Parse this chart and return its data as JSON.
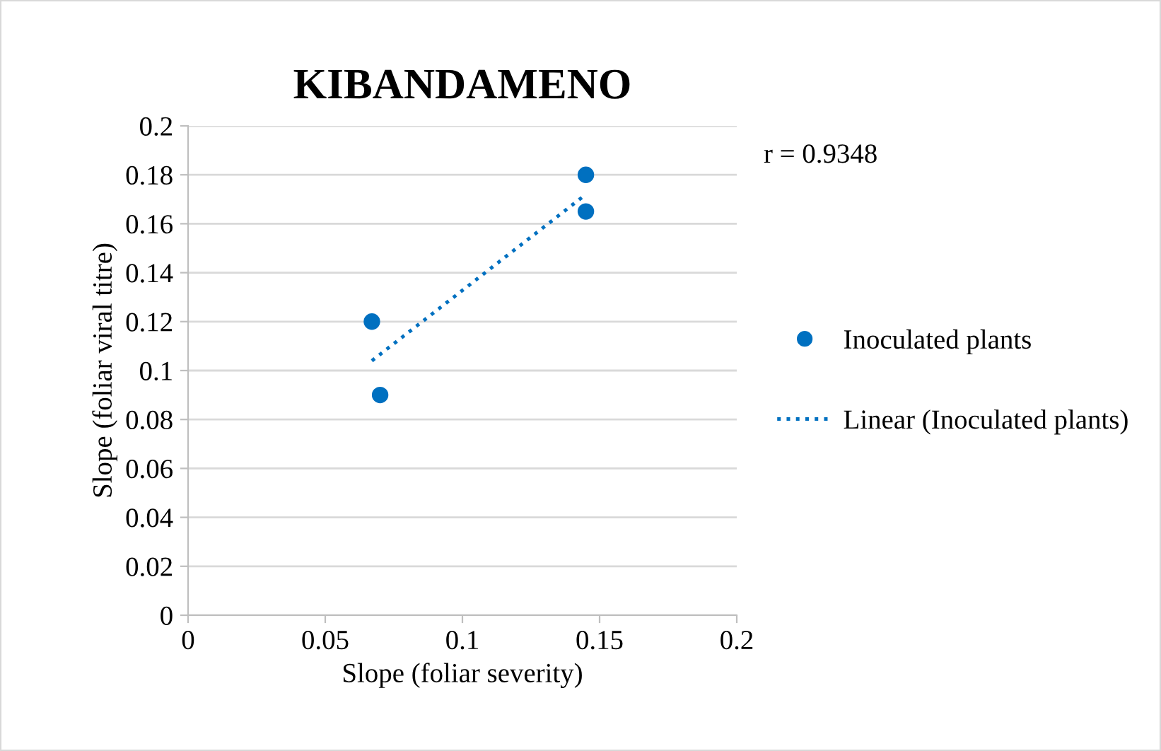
{
  "chart_data": {
    "type": "scatter",
    "title": "KIBANDAMENO",
    "xlabel": "Slope (foliar severity)",
    "ylabel": "Slope (foliar viral titre)",
    "series": [
      {
        "name": "Inoculated plants",
        "type": "scatter",
        "color": "#0070c0",
        "x": [
          0.067,
          0.07,
          0.145,
          0.145
        ],
        "values": [
          0.12,
          0.09,
          0.18,
          0.165
        ],
        "marker": "circle"
      },
      {
        "name": "Linear (Inoculated plants)",
        "type": "line",
        "color": "#0070c0",
        "x": [
          0.067,
          0.145
        ],
        "values": [
          0.104,
          0.172
        ],
        "line_style": "dotted",
        "marker": "none"
      }
    ],
    "annotations": [
      "r = 0.9348"
    ],
    "xlim": [
      0,
      0.2
    ],
    "xticks": [
      0,
      0.05,
      0.1,
      0.15,
      0.2
    ],
    "ylim": [
      0,
      0.2
    ],
    "yticks": [
      0,
      0.02,
      0.04,
      0.06,
      0.08,
      0.1,
      0.12,
      0.14,
      0.16,
      0.18,
      0.2
    ],
    "grid": "y",
    "legend": "right"
  }
}
